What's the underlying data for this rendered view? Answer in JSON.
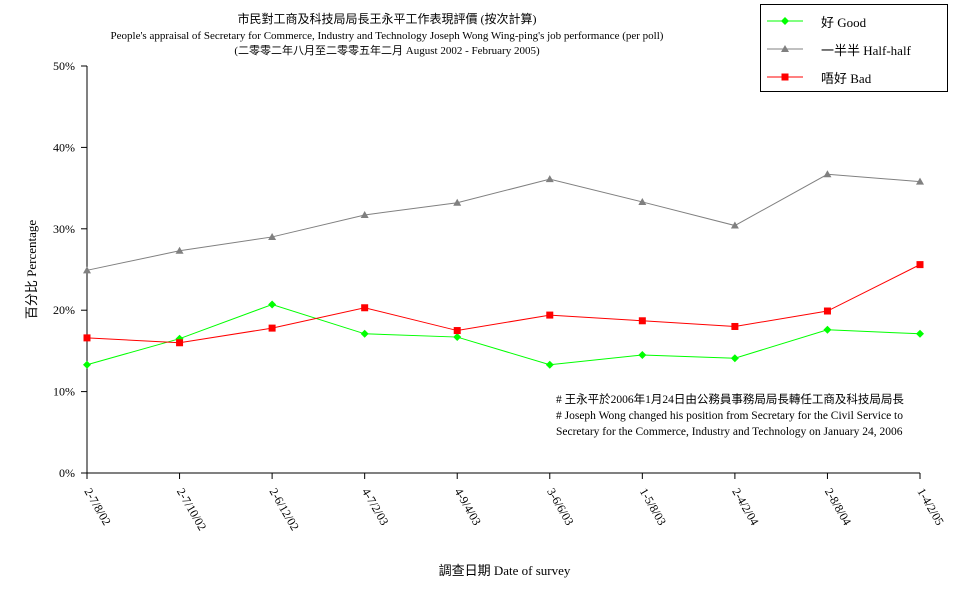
{
  "chart_data": {
    "type": "line",
    "title": "市民對工商及科技局局長王永平工作表現評價 (按次計算)",
    "subtitle": "People's appraisal of Secretary for Commerce, Industry and Technology Joseph Wong Wing-ping's job performance (per poll)",
    "subtitle2": "(二零零二年八月至二零零五年二月 August 2002 - February 2005)",
    "xlabel": "調查日期 Date of survey",
    "ylabel": "百分比 Percentage",
    "ylim": [
      0,
      50
    ],
    "yticks": [
      "0%",
      "10%",
      "20%",
      "30%",
      "40%",
      "50%"
    ],
    "categories": [
      "2-7/8/02",
      "2-7/10/02",
      "2-6/12/02",
      "4-7/2/03",
      "4-9/4/03",
      "3-6/6/03",
      "1-5/8/03",
      "2-4/2/04",
      "2-8/8/04",
      "1-4/2/05"
    ],
    "series": [
      {
        "name": "好 Good",
        "color": "#00ff00",
        "marker": "diamond",
        "values": [
          13.3,
          16.5,
          20.7,
          17.1,
          16.7,
          13.3,
          14.5,
          14.1,
          17.6,
          17.1
        ]
      },
      {
        "name": "一半半 Half-half",
        "color": "#808080",
        "marker": "triangle",
        "values": [
          24.9,
          27.3,
          29.0,
          31.7,
          33.2,
          36.1,
          33.3,
          30.4,
          36.7,
          35.8
        ]
      },
      {
        "name": "唔好 Bad",
        "color": "#ff0000",
        "marker": "square",
        "values": [
          16.6,
          16.0,
          17.8,
          20.3,
          17.5,
          19.4,
          18.7,
          18.0,
          19.9,
          25.6
        ]
      }
    ],
    "legend_position": "top-right",
    "grid": false,
    "annotations": [
      "# 王永平於2006年1月24日由公務員事務局局長轉任工商及科技局局長",
      "# Joseph Wong changed his position from Secretary for the Civil Service to",
      "Secretary for the Commerce, Industry and Technology on January 24, 2006"
    ]
  }
}
